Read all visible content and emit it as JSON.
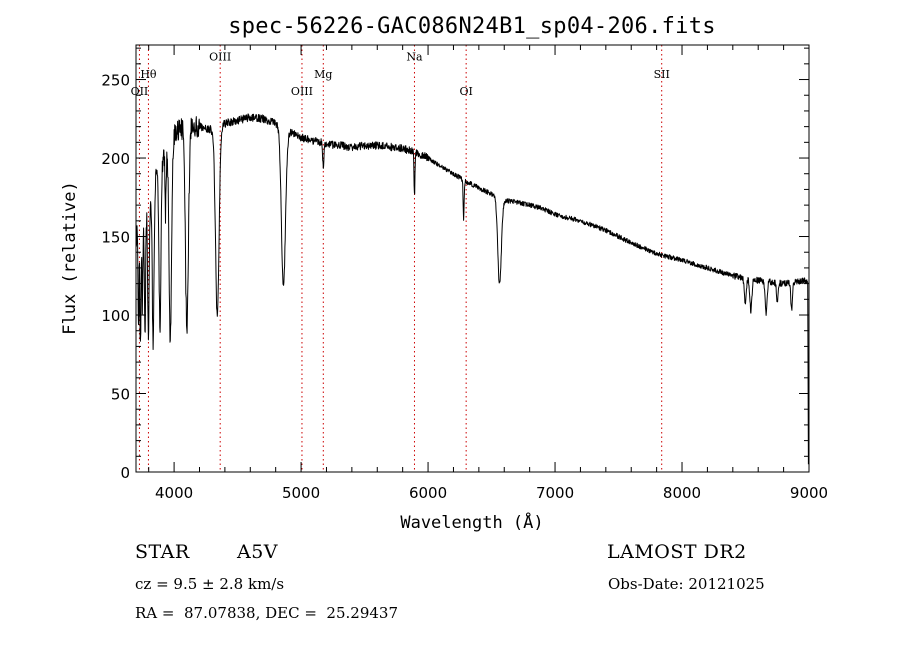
{
  "chart_data": {
    "type": "line",
    "title": "spec-56226-GAC086N24B1_sp04-206.fits",
    "xlabel": "Wavelength (Å)",
    "ylabel": "Flux (relative)",
    "xlim": [
      3700,
      9000
    ],
    "ylim": [
      0,
      272
    ],
    "x_ticks": [
      "4000",
      "5000",
      "6000",
      "7000",
      "8000",
      "9000"
    ],
    "y_ticks": [
      "0",
      "50",
      "100",
      "150",
      "200",
      "250"
    ],
    "grid": false,
    "line_color": "#000000",
    "marker_color": "#cc0000",
    "line_markers": [
      {
        "label": "OII",
        "x": 3727,
        "label_y": 240
      },
      {
        "label": "Hθ",
        "x": 3798,
        "label_y": 251
      },
      {
        "label": "OIII",
        "x": 4363,
        "label_y": 262
      },
      {
        "label": "OIII",
        "x": 5007,
        "label_y": 240
      },
      {
        "label": "Mg",
        "x": 5175,
        "label_y": 251
      },
      {
        "label": "Na",
        "x": 5893,
        "label_y": 262
      },
      {
        "label": "OI",
        "x": 6300,
        "label_y": 240
      },
      {
        "label": "SII",
        "x": 7840,
        "label_y": 251
      }
    ],
    "continuum": [
      [
        3700,
        150
      ],
      [
        3800,
        175
      ],
      [
        3900,
        200
      ],
      [
        4000,
        215
      ],
      [
        4100,
        222
      ],
      [
        4200,
        220
      ],
      [
        4300,
        218
      ],
      [
        4400,
        222
      ],
      [
        4500,
        224
      ],
      [
        4600,
        226
      ],
      [
        4700,
        225
      ],
      [
        4800,
        222
      ],
      [
        4900,
        217
      ],
      [
        5000,
        213
      ],
      [
        5100,
        211
      ],
      [
        5200,
        209
      ],
      [
        5300,
        208
      ],
      [
        5400,
        207
      ],
      [
        5500,
        208
      ],
      [
        5600,
        208
      ],
      [
        5700,
        207
      ],
      [
        5800,
        206
      ],
      [
        5900,
        204
      ],
      [
        6000,
        200
      ],
      [
        6100,
        195
      ],
      [
        6200,
        190
      ],
      [
        6300,
        185
      ],
      [
        6400,
        181
      ],
      [
        6500,
        177
      ],
      [
        6600,
        173
      ],
      [
        6700,
        172
      ],
      [
        6800,
        170
      ],
      [
        6900,
        168
      ],
      [
        7000,
        164
      ],
      [
        7200,
        160
      ],
      [
        7400,
        154
      ],
      [
        7600,
        146
      ],
      [
        7800,
        139
      ],
      [
        8000,
        135
      ],
      [
        8200,
        130
      ],
      [
        8400,
        125
      ],
      [
        8600,
        122
      ],
      [
        8800,
        120
      ],
      [
        8950,
        122
      ]
    ],
    "absorption_lines": [
      {
        "x": 3720,
        "depth": 60,
        "width": 4
      },
      {
        "x": 3735,
        "depth": 80,
        "width": 4
      },
      {
        "x": 3750,
        "depth": 55,
        "width": 4
      },
      {
        "x": 3771,
        "depth": 80,
        "width": 5
      },
      {
        "x": 3798,
        "depth": 85,
        "width": 6
      },
      {
        "x": 3835,
        "depth": 100,
        "width": 7
      },
      {
        "x": 3889,
        "depth": 105,
        "width": 8
      },
      {
        "x": 3933,
        "depth": 40,
        "width": 4
      },
      {
        "x": 3970,
        "depth": 125,
        "width": 10
      },
      {
        "x": 4101,
        "depth": 130,
        "width": 12
      },
      {
        "x": 4340,
        "depth": 120,
        "width": 14
      },
      {
        "x": 4861,
        "depth": 100,
        "width": 16
      },
      {
        "x": 5175,
        "depth": 15,
        "width": 5
      },
      {
        "x": 5893,
        "depth": 28,
        "width": 4
      },
      {
        "x": 6280,
        "depth": 25,
        "width": 4
      },
      {
        "x": 6563,
        "depth": 55,
        "width": 14
      },
      {
        "x": 8498,
        "depth": 15,
        "width": 8
      },
      {
        "x": 8542,
        "depth": 20,
        "width": 8
      },
      {
        "x": 8662,
        "depth": 20,
        "width": 8
      },
      {
        "x": 8750,
        "depth": 12,
        "width": 6
      },
      {
        "x": 8863,
        "depth": 18,
        "width": 6
      }
    ]
  },
  "info": {
    "object_class": "STAR",
    "subclass": "A5V",
    "survey": "LAMOST DR2",
    "redshift": "cz = 9.5 ± 2.8 km/s",
    "obs_date": "Obs-Date: 20121025",
    "coords": "RA =  87.07838, DEC =  25.29437"
  }
}
